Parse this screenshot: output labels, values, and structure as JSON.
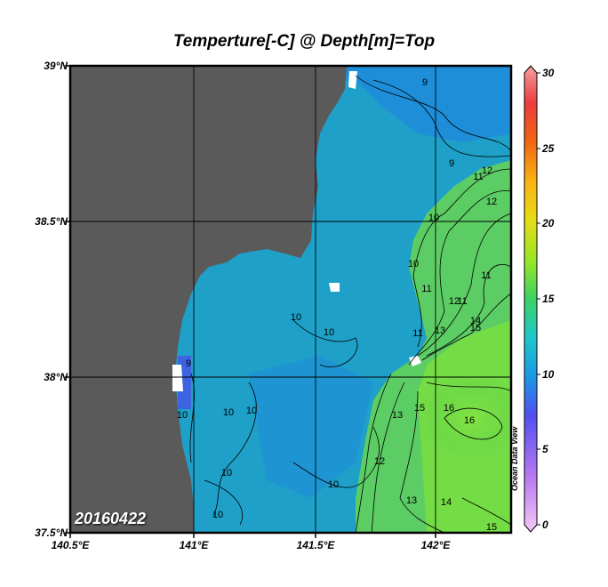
{
  "title": "Temperture[-C] @ Depth[m]=Top",
  "date_label": "20160422",
  "watermark": "Ocean Data View",
  "axes": {
    "lat_labels": [
      "39°N",
      "38.5°N",
      "38°N",
      "37.5°N"
    ],
    "lon_labels": [
      "140.5°E",
      "141°E",
      "141.5°E",
      "142°E"
    ]
  },
  "colorbar": {
    "ticks": [
      "30",
      "25",
      "20",
      "15",
      "10",
      "5",
      "0"
    ],
    "range": [
      0,
      30
    ]
  },
  "contour_labels": [
    "9",
    "9",
    "9",
    "10",
    "10",
    "10",
    "10",
    "10",
    "10",
    "10",
    "10",
    "10",
    "10",
    "11",
    "11",
    "11",
    "11",
    "11",
    "12",
    "12",
    "12",
    "12",
    "13",
    "13",
    "13",
    "14",
    "14",
    "15",
    "15",
    "15",
    "16",
    "16"
  ],
  "colors": {
    "land": "#5a5a5a",
    "cold_water": "#1e96d2",
    "mid_water": "#1eb4b4",
    "warm_water": "#5ad050",
    "warmest_water": "#78e03c"
  }
}
